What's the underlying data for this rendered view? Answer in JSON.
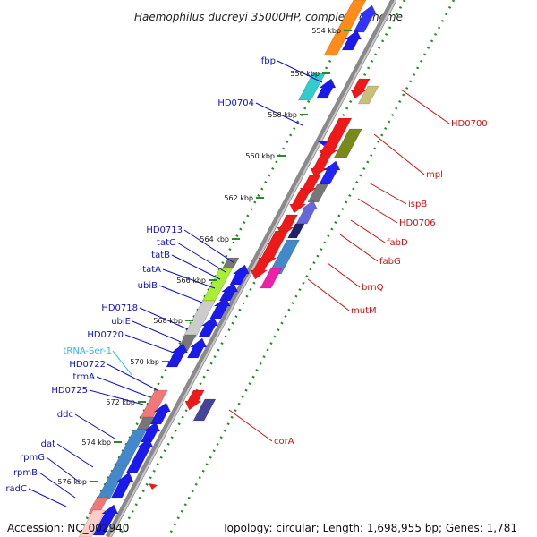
{
  "title": "Haemophilus ducreyi 35000HP, complete genome",
  "footer": {
    "accession": "Accession: NC_002940",
    "summary": "Topology: circular; Length: 1,698,955 bp; Genes: 1,781"
  },
  "kbp_ticks": [
    "554 kbp",
    "556 kbp",
    "558 kbp",
    "560 kbp",
    "562 kbp",
    "564 kbp",
    "566 kbp",
    "568 kbp",
    "570 kbp",
    "572 kbp",
    "574 kbp",
    "576 kbp"
  ],
  "genes_left": [
    "fbp",
    "HD0704",
    "HD0713",
    "tatC",
    "tatB",
    "tatA",
    "ubiB",
    "HD0718",
    "ubiE",
    "HD0720",
    "HD0722",
    "trmA",
    "HD0725",
    "ddc",
    "dat",
    "rpmG",
    "rpmB",
    "radC"
  ],
  "rna_labels": [
    "tRNA-Ser-1"
  ],
  "genes_right": [
    "HD0700",
    "mpl",
    "ispB",
    "HD0706",
    "fabD",
    "fabG",
    "brnQ",
    "mutM",
    "corA"
  ],
  "colors": {
    "forward": "#1a1aee",
    "reverse": "#ee1a1a",
    "backbone": "#8a8a8a",
    "tick": "#2a8a2a",
    "label_left": "#1010c8",
    "label_right": "#d01010",
    "label_rna": "#30b8d8"
  }
}
